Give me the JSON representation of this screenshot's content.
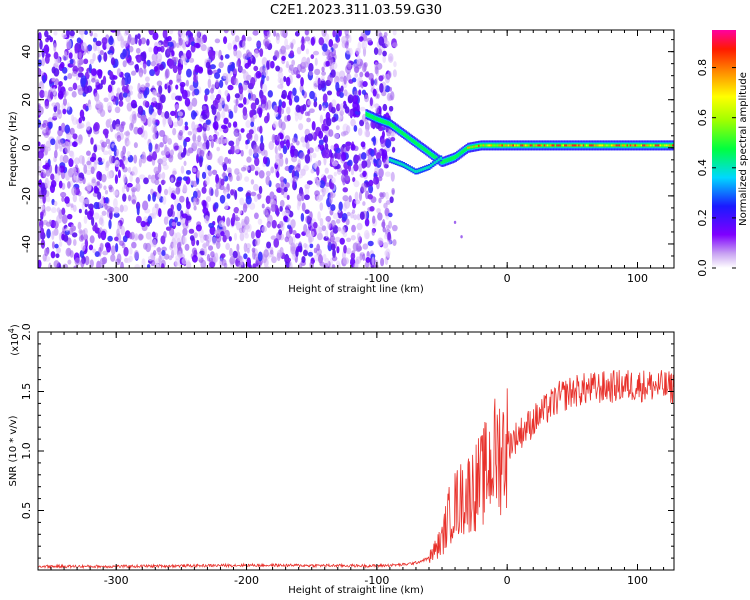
{
  "title": "C2E1.2023.311.03.59.G30",
  "chart_data": [
    {
      "type": "heatmap",
      "title": "C2E1.2023.311.03.59.G30",
      "xlabel": "Height of straight line (km)",
      "ylabel": "Frequency (Hz)",
      "xlim": [
        -360,
        128
      ],
      "ylim": [
        -50,
        49
      ],
      "x_ticks": [
        -300,
        -200,
        -100,
        0,
        100
      ],
      "x_tick_labels": [
        "-300",
        "-200",
        "-100",
        "0",
        "100"
      ],
      "y_ticks": [
        -40,
        -20,
        0,
        20,
        40
      ],
      "y_tick_labels": [
        "-40",
        "-20",
        "0",
        "20",
        "40"
      ],
      "colorbar": {
        "label": "Normalized spectral amplitude",
        "range": [
          0,
          0.95
        ],
        "ticks": [
          0.0,
          0.2,
          0.4,
          0.6,
          0.8
        ],
        "tick_labels": [
          "0.0",
          "0.2",
          "0.4",
          "0.6",
          "0.8"
        ],
        "colormap": "rainbow (white-purple-blue-cyan-green-yellow-orange-red-magenta)"
      },
      "features": {
        "noise_region_x": [
          -360,
          -90
        ],
        "signal_track": {
          "x": [
            -108,
            -100,
            -90,
            -80,
            -70,
            -60,
            -50,
            -40,
            -30,
            -20,
            0,
            20,
            40,
            60,
            80,
            100,
            128
          ],
          "freq": [
            14,
            12,
            10,
            6,
            2,
            -2,
            -6,
            -4,
            0,
            1,
            1,
            1,
            1,
            1,
            1,
            1,
            1
          ]
        },
        "lower_branch": {
          "x": [
            -90,
            -80,
            -70,
            -60,
            -50
          ],
          "freq": [
            -5,
            -7,
            -10,
            -8,
            -4
          ]
        }
      },
      "grid": false
    },
    {
      "type": "line",
      "xlabel": "Height of straight line (km)",
      "ylabel": "SNR (10 * v/v)",
      "y_multiplier_label": "(x10",
      "y_multiplier_exp": "4",
      "xlim": [
        -360,
        128
      ],
      "ylim": [
        0,
        20000
      ],
      "x_ticks": [
        -300,
        -200,
        -100,
        0,
        100
      ],
      "x_tick_labels": [
        "-300",
        "-200",
        "-100",
        "0",
        "100"
      ],
      "y_ticks": [
        5000,
        10000,
        15000,
        20000
      ],
      "y_tick_labels": [
        "0.5",
        "1.0",
        "1.5",
        "2.0"
      ],
      "series": [
        {
          "color": "#e8302a",
          "x": [
            -360,
            -300,
            -250,
            -200,
            -150,
            -100,
            -80,
            -70,
            -60,
            -50,
            -45,
            -40,
            -35,
            -30,
            -25,
            -20,
            -15,
            -10,
            -5,
            0,
            10,
            20,
            30,
            40,
            50,
            60,
            70,
            80,
            90,
            100,
            110,
            120,
            128
          ],
          "values": [
            300,
            300,
            350,
            400,
            380,
            350,
            450,
            600,
            1000,
            2500,
            4500,
            5500,
            6000,
            6500,
            7000,
            7500,
            8500,
            9500,
            10000,
            10500,
            11500,
            12500,
            13500,
            14500,
            15000,
            15200,
            15300,
            15400,
            15500,
            15500,
            15500,
            15400,
            15300
          ]
        }
      ],
      "grid": false
    }
  ]
}
